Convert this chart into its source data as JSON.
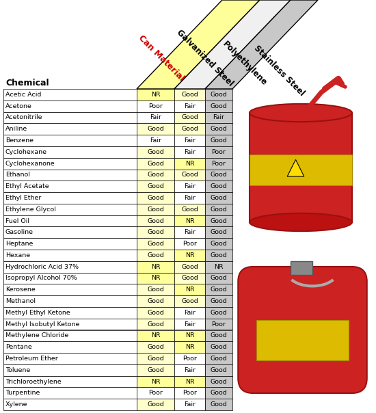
{
  "chemicals": [
    "Acetic Acid",
    "Acetone",
    "Acetonitrile",
    "Aniline",
    "Benzene",
    "Cyclohexane",
    "Cyclohexanone",
    "Ethanol",
    "Ethyl Acetate",
    "Ethyl Ether",
    "Ethylene Glycol",
    "Fuel Oil",
    "Gasoline",
    "Heptane",
    "Hexane",
    "Hydrochloric Acid 37%",
    "Isopropyl Alcohol 70%",
    "Kerosene",
    "Methanol",
    "Methyl Ethyl Ketone",
    "Methyl Isobutyl Ketone",
    "Methylene Chloride",
    "Pentane",
    "Petroleum Ether",
    "Toluene",
    "Trichloroethylene",
    "Turpentine",
    "Xylene"
  ],
  "galvanized_steel": [
    "NR",
    "Poor",
    "Fair",
    "Good",
    "Fair",
    "Good",
    "Good",
    "Good",
    "Good",
    "Good",
    "Good",
    "Good",
    "Good",
    "Good",
    "Good",
    "NR",
    "NR",
    "Good",
    "Good",
    "Good",
    "Good",
    "NR",
    "Good",
    "Good",
    "Good",
    "NR",
    "Poor",
    "Good"
  ],
  "polyethylene": [
    "Good",
    "Fair",
    "Good",
    "Good",
    "Fair",
    "Fair",
    "NR",
    "Good",
    "Fair",
    "Fair",
    "Good",
    "NR",
    "Fair",
    "Poor",
    "NR",
    "Good",
    "Good",
    "NR",
    "Good",
    "Fair",
    "Fair",
    "NR",
    "NR",
    "Poor",
    "Fair",
    "NR",
    "Poor",
    "Fair"
  ],
  "stainless_steel": [
    "Good",
    "Good",
    "Fair",
    "Good",
    "Good",
    "Poor",
    "Poor",
    "Good",
    "Good",
    "Good",
    "Good",
    "Good",
    "Good",
    "Good",
    "Good",
    "NR",
    "Good",
    "Good",
    "Good",
    "Good",
    "Poor",
    "Good",
    "Good",
    "Good",
    "Good",
    "Good",
    "Good",
    "Good"
  ],
  "col_header_label": "Can Material",
  "col1_label": "Galvanized Steel",
  "col2_label": "Polyethylene",
  "col3_label": "Stainless Steel",
  "chemical_col_label": "Chemical",
  "title_color": "#CC0000",
  "fig_bg": "#FFFFFF",
  "yellow_bg": "#FFFF99",
  "light_yellow_bg": "#FFFFCC",
  "gray_bg": "#C8C8C8",
  "nr_color": "#FFFF99",
  "good_color": "#FFFFCC",
  "other_color": "#FFFFFF"
}
